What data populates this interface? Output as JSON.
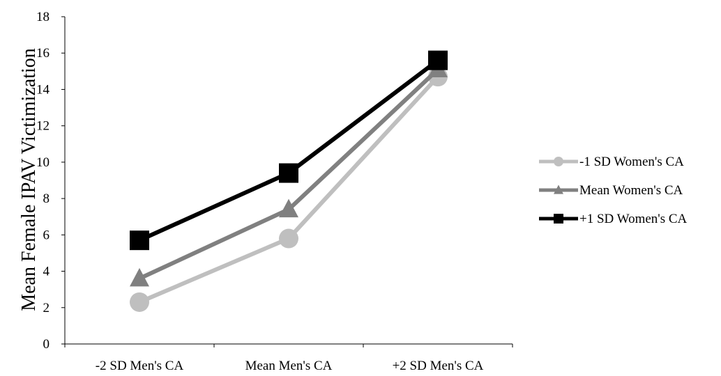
{
  "chart_data": {
    "type": "line",
    "title": "",
    "xlabel": "",
    "ylabel": "Mean Female IPAV Victimization",
    "ylim": [
      0,
      18
    ],
    "yticks": [
      0,
      2,
      4,
      6,
      8,
      10,
      12,
      14,
      16,
      18
    ],
    "categories": [
      "-2 SD Men's CA",
      "Mean Men's CA",
      "+2 SD Men's CA"
    ],
    "grid": false,
    "legend_position": "right",
    "series": [
      {
        "name": "-1 SD Women's CA",
        "values": [
          2.3,
          5.8,
          14.7
        ],
        "color": "#bfbfbf",
        "marker": "circle"
      },
      {
        "name": "Mean Women's CA",
        "values": [
          3.6,
          7.4,
          15.1
        ],
        "color": "#808080",
        "marker": "triangle"
      },
      {
        "name": "+1 SD Women's CA",
        "values": [
          5.7,
          9.4,
          15.6
        ],
        "color": "#000000",
        "marker": "square"
      }
    ]
  }
}
